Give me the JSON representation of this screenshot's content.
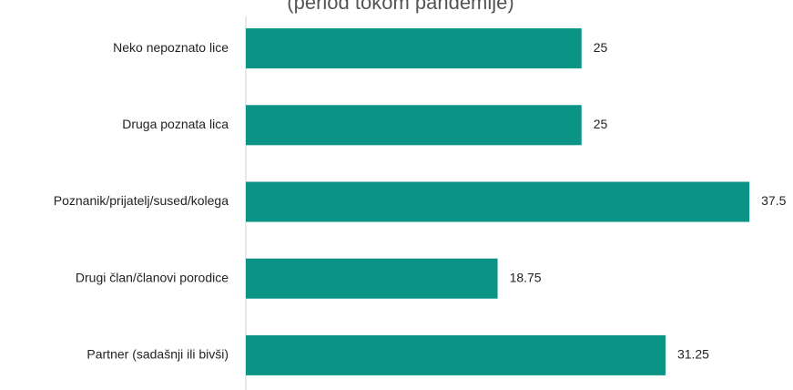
{
  "chart_data": {
    "type": "barh",
    "title": "(period tokom pandemije)",
    "categories": [
      "Neko nepoznato lice",
      "Druga poznata lica",
      "Poznanik/prijatelj/sused/kolega",
      "Drugi član/članovi porodice",
      "Partner (sadašnji ili bivši)"
    ],
    "values": [
      25,
      25,
      37.5,
      18.75,
      31.25
    ],
    "color": "#0a9486",
    "xlim": [
      0,
      40
    ]
  }
}
